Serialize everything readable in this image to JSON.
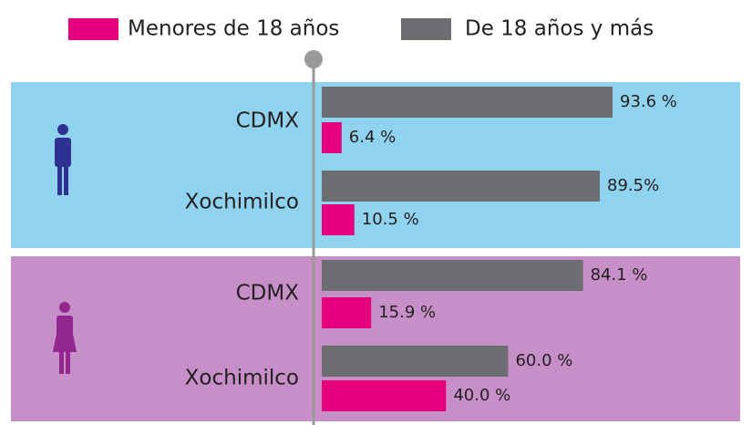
{
  "chart_data": {
    "type": "bar",
    "categories": [
      "CDMX",
      "Xochimilco",
      "CDMX",
      "Xochimilco"
    ],
    "series": [
      {
        "name": "Menores de 18 años",
        "color": "#e5007e",
        "values": [
          6.4,
          10.5,
          15.9,
          40.0
        ],
        "value_labels": [
          "6.4 %",
          "10.5 %",
          "15.9 %",
          "40.0 %"
        ]
      },
      {
        "name": "De 18 años y más",
        "color": "#6d6e71",
        "values": [
          93.6,
          89.5,
          84.1,
          60.0
        ],
        "value_labels": [
          "93.6 %",
          "89.5%",
          "84.1 %",
          "60.0 %"
        ]
      }
    ]
  }
}
